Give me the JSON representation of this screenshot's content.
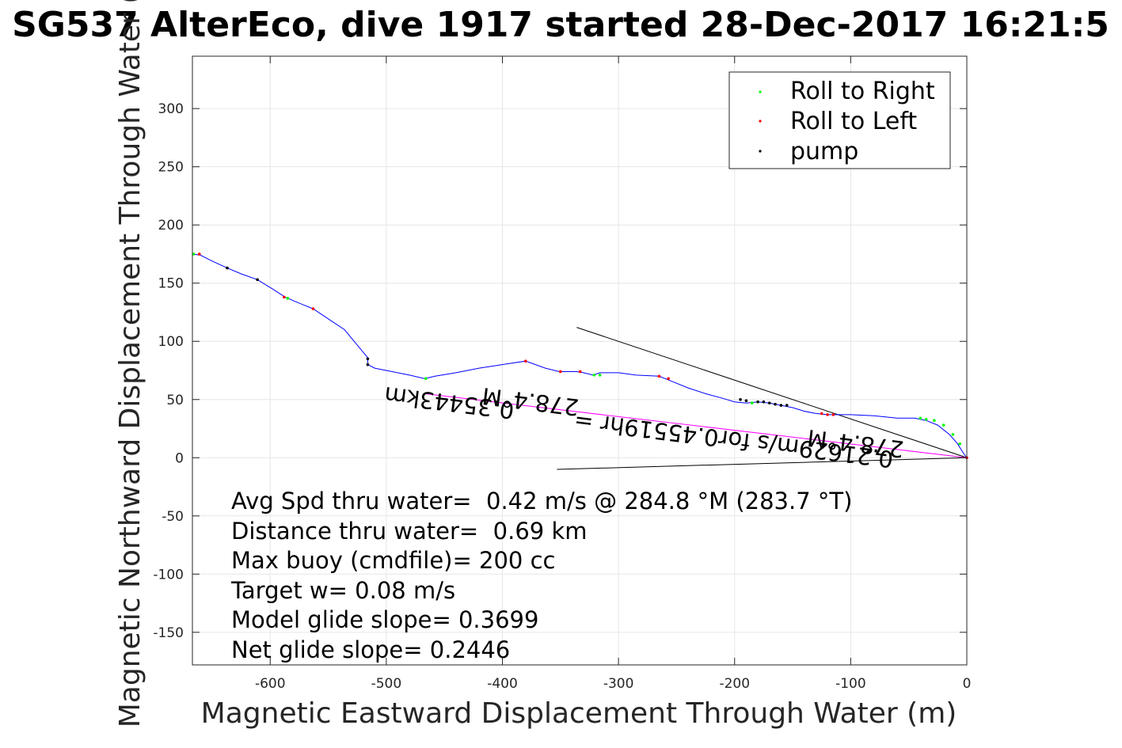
{
  "chart_data": {
    "type": "line",
    "title": "SG537 AlterEco, dive 1917 started 28-Dec-2017 16:21:5",
    "xlabel": "Magnetic Eastward Displacement Through Water (m)",
    "ylabel": "Magnetic Northward Displacement Through Water (",
    "xlim": [
      -667,
      0
    ],
    "ylim": [
      -178,
      345
    ],
    "xticks": [
      -600,
      -500,
      -400,
      -300,
      -200,
      -100,
      0
    ],
    "yticks": [
      300,
      250,
      200,
      150,
      100,
      50,
      0,
      -50,
      -100,
      -150
    ],
    "grid": true,
    "legend_position": "top-right",
    "legend": [
      {
        "label": "Roll to Right",
        "color": "#00ff00"
      },
      {
        "label": "Roll to Left",
        "color": "#ff0000"
      },
      {
        "label": "pump",
        "color": "#000000"
      }
    ],
    "track_color": "#0000ff",
    "series": [
      {
        "x": [
          -667,
          -660,
          -650,
          -637,
          -625,
          -611,
          -598,
          -587,
          -578,
          -563,
          -548,
          -536,
          -526,
          -516,
          -516,
          -510,
          -495,
          -480,
          -467,
          -458,
          -440,
          -420,
          -400,
          -380,
          -363,
          -351,
          -343,
          -336,
          -330,
          -322,
          -316,
          -300,
          -285,
          -265,
          -255,
          -240,
          -225,
          -210,
          -200,
          -190,
          -180,
          -170,
          -160,
          -150,
          -140,
          -130,
          -120,
          -110,
          -100,
          -80,
          -60,
          -45,
          -35,
          -25,
          -15,
          -8,
          -3,
          0
        ],
        "y": [
          175,
          174,
          169,
          163,
          158,
          153,
          145,
          138,
          134,
          128,
          118,
          110,
          98,
          86,
          80,
          77,
          74,
          71,
          68,
          70,
          73,
          77,
          80,
          83,
          77,
          74,
          74,
          74,
          73,
          71,
          73,
          73,
          71,
          70,
          66,
          60,
          55,
          51,
          48,
          47,
          48,
          47,
          45,
          43,
          40,
          38,
          37,
          37,
          37,
          36,
          34,
          34,
          32,
          28,
          20,
          12,
          4,
          0
        ]
      }
    ],
    "roll_right_points": [
      [
        -666,
        175
      ],
      [
        -585,
        137
      ],
      [
        -466,
        68
      ],
      [
        -321,
        71
      ],
      [
        -316,
        71
      ],
      [
        -185,
        47
      ],
      [
        -180,
        48
      ],
      [
        -40,
        34
      ],
      [
        -35,
        33
      ],
      [
        -28,
        32
      ],
      [
        -20,
        28
      ],
      [
        -12,
        20
      ],
      [
        -6,
        12
      ]
    ],
    "roll_left_points": [
      [
        -661,
        175
      ],
      [
        -588,
        138
      ],
      [
        -563,
        128
      ],
      [
        -380,
        83
      ],
      [
        -350,
        74
      ],
      [
        -333,
        74
      ],
      [
        -265,
        70
      ],
      [
        -257,
        68
      ],
      [
        -125,
        38
      ],
      [
        -120,
        37
      ],
      [
        -115,
        37
      ],
      [
        0,
        0
      ]
    ],
    "pump_points": [
      [
        -637,
        163
      ],
      [
        -611,
        153
      ],
      [
        -516,
        85
      ],
      [
        -516,
        80
      ],
      [
        -195,
        50
      ],
      [
        -190,
        49
      ],
      [
        -180,
        48
      ],
      [
        -175,
        48
      ],
      [
        -170,
        47
      ],
      [
        -165,
        46
      ],
      [
        -160,
        45
      ],
      [
        -155,
        45
      ]
    ],
    "heading_lines": [
      {
        "x": [
          -336,
          0
        ],
        "y": [
          112,
          0
        ]
      },
      {
        "x": [
          -353,
          0
        ],
        "y": [
          -10,
          0
        ]
      }
    ],
    "average_line": {
      "x": [
        -467,
        0
      ],
      "y": [
        55,
        0
      ],
      "color": "#ff00ff"
    },
    "rotated_labels": [
      {
        "text": "278.4°M",
        "x": -375,
        "y": 55,
        "angle": 187
      },
      {
        "text": "0.35443km",
        "x": -445,
        "y": 54,
        "angle": 187
      },
      {
        "text": "0.21629m/s for0.45519hr =",
        "x": -200,
        "y": 22,
        "angle": 187
      },
      {
        "text": "278.4°M",
        "x": -95,
        "y": 19,
        "angle": 187
      }
    ],
    "annotations": [
      "Avg Spd thru water=  0.42 m/s @ 284.8 °M (283.7 °T)",
      "Distance thru water=  0.69 km",
      "Max buoy (cmdfile)= 200 cc",
      "Target w= 0.08 m/s",
      "Model glide slope= 0.3699",
      "Net glide slope= 0.2446"
    ]
  }
}
